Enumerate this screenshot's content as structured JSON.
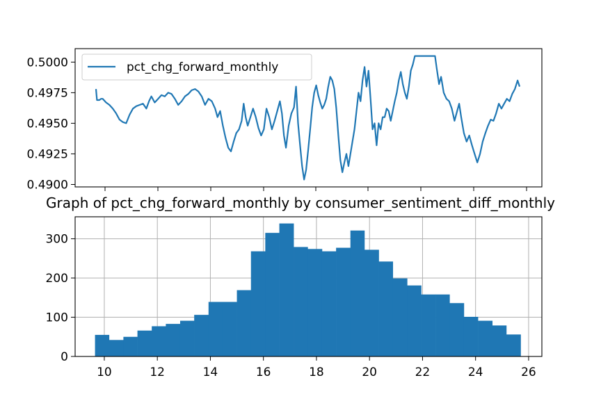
{
  "chart_data": [
    {
      "type": "line",
      "title": "",
      "xlabel": "",
      "ylabel": "",
      "ylim": [
        0.4898,
        0.5011
      ],
      "yticks": [
        "0.4900",
        "0.4925",
        "0.4950",
        "0.4975",
        "0.5000"
      ],
      "grid": false,
      "legend_position": "top-left",
      "series": [
        {
          "name": "pct_chg_forward_monthly",
          "color": "#1f77b4",
          "points": [
            [
              0.0,
              0.4978
            ],
            [
              0.3,
              0.4969
            ],
            [
              1.0,
              0.4969
            ],
            [
              1.5,
              0.497
            ],
            [
              2.0,
              0.497
            ],
            [
              3.0,
              0.4967
            ],
            [
              4.0,
              0.4965
            ],
            [
              5.0,
              0.4962
            ],
            [
              6.0,
              0.4958
            ],
            [
              7.0,
              0.4953
            ],
            [
              8.0,
              0.4951
            ],
            [
              9.0,
              0.495
            ],
            [
              10.0,
              0.4957
            ],
            [
              11.0,
              0.4962
            ],
            [
              12.0,
              0.4964
            ],
            [
              13.0,
              0.4965
            ],
            [
              14.0,
              0.4966
            ],
            [
              15.0,
              0.4962
            ],
            [
              15.8,
              0.4968
            ],
            [
              16.5,
              0.4972
            ],
            [
              17.5,
              0.4967
            ],
            [
              18.5,
              0.497
            ],
            [
              19.5,
              0.4973
            ],
            [
              20.5,
              0.4972
            ],
            [
              21.5,
              0.4975
            ],
            [
              22.5,
              0.4974
            ],
            [
              23.5,
              0.497
            ],
            [
              24.5,
              0.4965
            ],
            [
              25.5,
              0.4968
            ],
            [
              26.5,
              0.4972
            ],
            [
              27.5,
              0.4974
            ],
            [
              28.5,
              0.4977
            ],
            [
              29.5,
              0.4978
            ],
            [
              30.5,
              0.4976
            ],
            [
              31.5,
              0.4972
            ],
            [
              32.5,
              0.4965
            ],
            [
              33.5,
              0.497
            ],
            [
              34.5,
              0.4968
            ],
            [
              35.5,
              0.4962
            ],
            [
              36.2,
              0.4955
            ],
            [
              37.0,
              0.496
            ],
            [
              37.8,
              0.4948
            ],
            [
              38.6,
              0.4938
            ],
            [
              39.4,
              0.493
            ],
            [
              40.2,
              0.4927
            ],
            [
              41.0,
              0.4935
            ],
            [
              41.8,
              0.4942
            ],
            [
              42.6,
              0.4945
            ],
            [
              43.4,
              0.4952
            ],
            [
              44.0,
              0.4966
            ],
            [
              44.6,
              0.4955
            ],
            [
              45.2,
              0.4948
            ],
            [
              46.0,
              0.4955
            ],
            [
              46.8,
              0.4962
            ],
            [
              47.6,
              0.4955
            ],
            [
              48.4,
              0.4946
            ],
            [
              49.2,
              0.494
            ],
            [
              50.0,
              0.4945
            ],
            [
              50.8,
              0.4962
            ],
            [
              51.6,
              0.4955
            ],
            [
              52.4,
              0.4945
            ],
            [
              53.2,
              0.4952
            ],
            [
              54.0,
              0.496
            ],
            [
              54.8,
              0.4968
            ],
            [
              55.4,
              0.4958
            ],
            [
              56.0,
              0.494
            ],
            [
              56.6,
              0.493
            ],
            [
              57.4,
              0.4948
            ],
            [
              58.2,
              0.4958
            ],
            [
              59.0,
              0.4963
            ],
            [
              59.6,
              0.498
            ],
            [
              60.2,
              0.495
            ],
            [
              60.8,
              0.4932
            ],
            [
              61.4,
              0.4915
            ],
            [
              62.0,
              0.4904
            ],
            [
              62.6,
              0.4912
            ],
            [
              63.2,
              0.4928
            ],
            [
              63.8,
              0.4945
            ],
            [
              64.4,
              0.4963
            ],
            [
              65.0,
              0.4975
            ],
            [
              65.6,
              0.4981
            ],
            [
              66.2,
              0.4973
            ],
            [
              66.8,
              0.4967
            ],
            [
              67.4,
              0.4962
            ],
            [
              68.0,
              0.4965
            ],
            [
              68.6,
              0.497
            ],
            [
              69.2,
              0.498
            ],
            [
              69.8,
              0.4988
            ],
            [
              70.4,
              0.4985
            ],
            [
              71.0,
              0.4978
            ],
            [
              71.6,
              0.4962
            ],
            [
              72.2,
              0.494
            ],
            [
              72.8,
              0.492
            ],
            [
              73.4,
              0.491
            ],
            [
              74.0,
              0.4918
            ],
            [
              74.6,
              0.4925
            ],
            [
              75.2,
              0.4915
            ],
            [
              75.8,
              0.4925
            ],
            [
              76.4,
              0.4935
            ],
            [
              77.0,
              0.4945
            ],
            [
              77.6,
              0.496
            ],
            [
              78.2,
              0.4975
            ],
            [
              78.8,
              0.4968
            ],
            [
              79.4,
              0.4985
            ],
            [
              80.0,
              0.4996
            ],
            [
              80.6,
              0.498
            ],
            [
              81.2,
              0.4993
            ],
            [
              81.8,
              0.497
            ],
            [
              82.4,
              0.4945
            ],
            [
              83.0,
              0.495
            ],
            [
              83.6,
              0.4932
            ],
            [
              84.2,
              0.495
            ],
            [
              84.8,
              0.4945
            ],
            [
              85.4,
              0.4955
            ],
            [
              86.0,
              0.4955
            ],
            [
              86.6,
              0.4962
            ],
            [
              87.2,
              0.496
            ],
            [
              87.8,
              0.4952
            ],
            [
              88.4,
              0.496
            ],
            [
              89.0,
              0.4968
            ],
            [
              89.6,
              0.4975
            ],
            [
              90.2,
              0.4985
            ],
            [
              90.8,
              0.4992
            ],
            [
              91.4,
              0.4982
            ],
            [
              92.0,
              0.4975
            ],
            [
              92.6,
              0.497
            ],
            [
              93.2,
              0.498
            ],
            [
              93.8,
              0.4993
            ],
            [
              94.4,
              0.4998
            ],
            [
              95.0,
              0.5005
            ],
            [
              96.0,
              0.5005
            ],
            [
              97.0,
              0.5005
            ],
            [
              98.0,
              0.5005
            ],
            [
              99.0,
              0.5005
            ],
            [
              100.0,
              0.5005
            ],
            [
              101.0,
              0.5005
            ],
            [
              101.5,
              0.4995
            ],
            [
              102.2,
              0.4982
            ],
            [
              102.8,
              0.4988
            ],
            [
              103.6,
              0.4975
            ],
            [
              104.4,
              0.497
            ],
            [
              105.2,
              0.4968
            ],
            [
              106.0,
              0.4962
            ],
            [
              106.8,
              0.4952
            ],
            [
              107.6,
              0.496
            ],
            [
              108.2,
              0.4966
            ],
            [
              108.8,
              0.4955
            ],
            [
              109.6,
              0.4942
            ],
            [
              110.4,
              0.4935
            ],
            [
              111.2,
              0.494
            ],
            [
              112.0,
              0.4932
            ],
            [
              112.8,
              0.4925
            ],
            [
              113.6,
              0.4918
            ],
            [
              114.4,
              0.4925
            ],
            [
              115.2,
              0.4935
            ],
            [
              116.0,
              0.4942
            ],
            [
              116.8,
              0.4948
            ],
            [
              117.6,
              0.4953
            ],
            [
              118.4,
              0.4952
            ],
            [
              119.2,
              0.4958
            ],
            [
              120.0,
              0.4966
            ],
            [
              120.8,
              0.4962
            ],
            [
              121.6,
              0.4966
            ],
            [
              122.4,
              0.497
            ],
            [
              123.2,
              0.4968
            ],
            [
              124.0,
              0.4974
            ],
            [
              124.8,
              0.4978
            ],
            [
              125.6,
              0.4985
            ],
            [
              126.2,
              0.498
            ]
          ]
        }
      ]
    },
    {
      "type": "bar",
      "title": "Graph of pct_chg_forward_monthly by consumer_sentiment_diff_monthly",
      "xlabel": "",
      "ylabel": "",
      "xlim": [
        8.9,
        26.5
      ],
      "ylim": [
        0,
        356
      ],
      "xticks": [
        "10",
        "12",
        "14",
        "16",
        "18",
        "20",
        "22",
        "24",
        "26"
      ],
      "yticks": [
        "0",
        "100",
        "200",
        "300"
      ],
      "grid": true,
      "color": "#1f77b4",
      "bin_edges": [
        9.65,
        10.18,
        10.72,
        11.25,
        11.79,
        12.32,
        12.86,
        13.39,
        13.93,
        14.46,
        15.0,
        15.53,
        16.07,
        16.6,
        17.14,
        17.67,
        18.21,
        18.74,
        19.28,
        19.81,
        20.35,
        20.88,
        21.42,
        21.95,
        22.49,
        23.02,
        23.56,
        24.09,
        24.63,
        25.16,
        25.7
      ],
      "values": [
        55,
        42,
        50,
        66,
        77,
        83,
        91,
        106,
        139,
        139,
        169,
        268,
        315,
        339,
        279,
        274,
        268,
        277,
        321,
        272,
        242,
        199,
        181,
        158,
        158,
        136,
        101,
        91,
        79,
        56
      ]
    }
  ]
}
